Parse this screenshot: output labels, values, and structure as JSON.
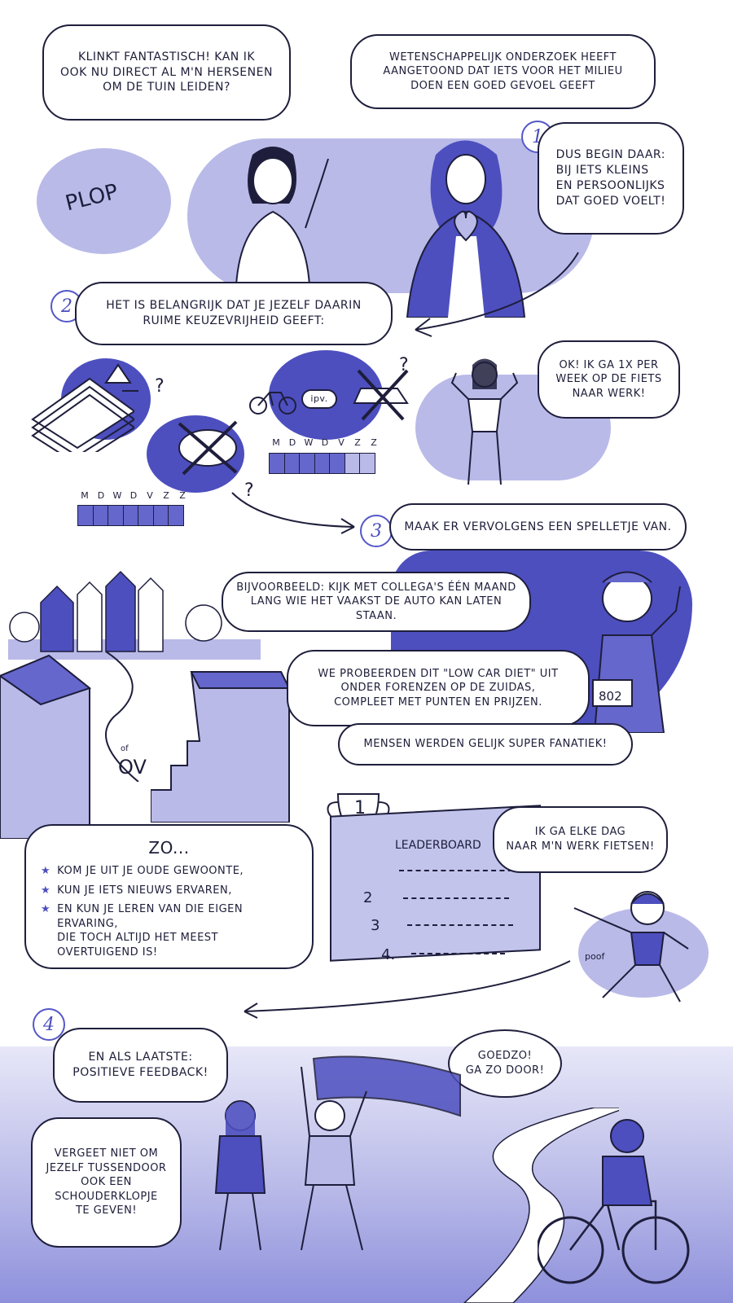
{
  "panel1": {
    "speech_left": "Klinkt fantastisch! Kan ik\nook nu direct al m'n hersenen\nom de tuin leiden?",
    "speech_right": "Wetenschappelijk onderzoek heeft\naangetoond dat iets voor het milieu\ndoen een goed gevoel geeft",
    "plop": "Plop"
  },
  "step1": {
    "number": "1",
    "text": "Dus begin daar:\nbij iets kleins\nen persoonlijks\ndat goed voelt!"
  },
  "step2": {
    "number": "2",
    "text": "Het is belangrijk dat je jezelf daarin\nruime keuzevrijheid geeft:",
    "ipv": "ipv.",
    "days": [
      "M",
      "D",
      "W",
      "D",
      "V",
      "Z",
      "Z"
    ],
    "reply": "OK! Ik ga 1x per\nweek op de fiets\nnaar werk!"
  },
  "step3": {
    "number": "3",
    "text": "Maak er vervolgens een spelletje van.",
    "example": "Bijvoorbeeld: kijk met collega's één maand\nlang wie het vaakst de auto kan laten staan.",
    "tried": "We probeerden dit \"Low car diet\" uit\nonder forenzen op de Zuidas,\ncompleet met punten en prijzen.",
    "fanatic": "Mensen werden gelijk super fanatiek!",
    "runner_bib": "802",
    "sign_of": "of",
    "sign_ov": "OV",
    "leaderboard_title": "Leaderboard",
    "ranks": [
      "1",
      "2",
      "3",
      "4."
    ],
    "cyclist_speech": "Ik ga elke dag\nnaar m'n werk fietsen!",
    "poof": "poof"
  },
  "summary": {
    "title": "Zo...",
    "items": [
      "Kom je uit je oude gewoonte,",
      "kun je iets nieuws ervaren,",
      "en kun je leren van die eigen ervaring,\ndie toch altijd het meest overtuigend is!"
    ]
  },
  "step4": {
    "number": "4",
    "text": "En als laatste:\npositieve feedback!",
    "cheer": "Goedzo!\nGa zo door!",
    "reminder": "Vergeet niet om\njezelf tussendoor\nook een\nschouderklopje\nte geven!"
  },
  "colors": {
    "accent": "#4d4fbf",
    "light": "#b9bae8",
    "ink": "#1e1e3c"
  }
}
